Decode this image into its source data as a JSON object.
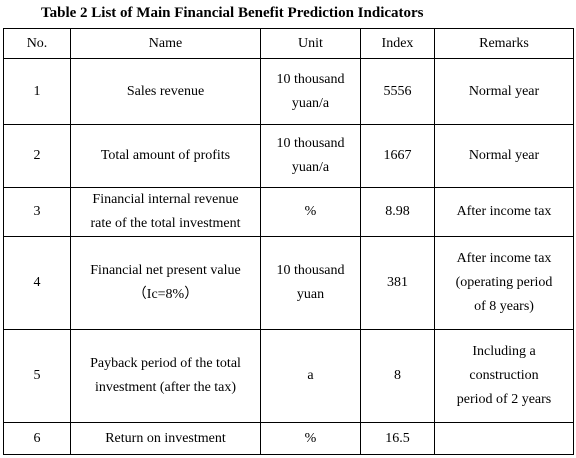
{
  "table": {
    "caption": "Table 2 List of Main Financial Benefit Prediction Indicators",
    "headers": {
      "no": "No.",
      "name": "Name",
      "unit": "Unit",
      "index": "Index",
      "remarks": "Remarks"
    },
    "rows": [
      {
        "no": "1",
        "name": [
          "Sales revenue"
        ],
        "unit": [
          "10 thousand",
          "yuan/a"
        ],
        "index": "5556",
        "remarks": [
          "Normal year"
        ]
      },
      {
        "no": "2",
        "name": [
          "Total amount of profits"
        ],
        "unit": [
          "10 thousand",
          "yuan/a"
        ],
        "index": "1667",
        "remarks": [
          "Normal year"
        ]
      },
      {
        "no": "3",
        "name": [
          "Financial internal revenue",
          "rate of the total investment"
        ],
        "unit": [
          "%"
        ],
        "index": "8.98",
        "remarks": [
          "After income tax"
        ]
      },
      {
        "no": "4",
        "name": [
          "Financial net present value",
          "（Ic=8%）"
        ],
        "unit": [
          "10 thousand",
          "yuan"
        ],
        "index": "381",
        "remarks": [
          "After income tax",
          "(operating period",
          "of 8 years)"
        ]
      },
      {
        "no": "5",
        "name": [
          "Payback period of the total",
          "investment (after the tax)"
        ],
        "unit": [
          "a"
        ],
        "index": "8",
        "remarks": [
          "Including a",
          "construction",
          "period of 2 years"
        ]
      },
      {
        "no": "6",
        "name": [
          "Return on investment"
        ],
        "unit": [
          "%"
        ],
        "index": "16.5",
        "remarks": []
      }
    ]
  }
}
